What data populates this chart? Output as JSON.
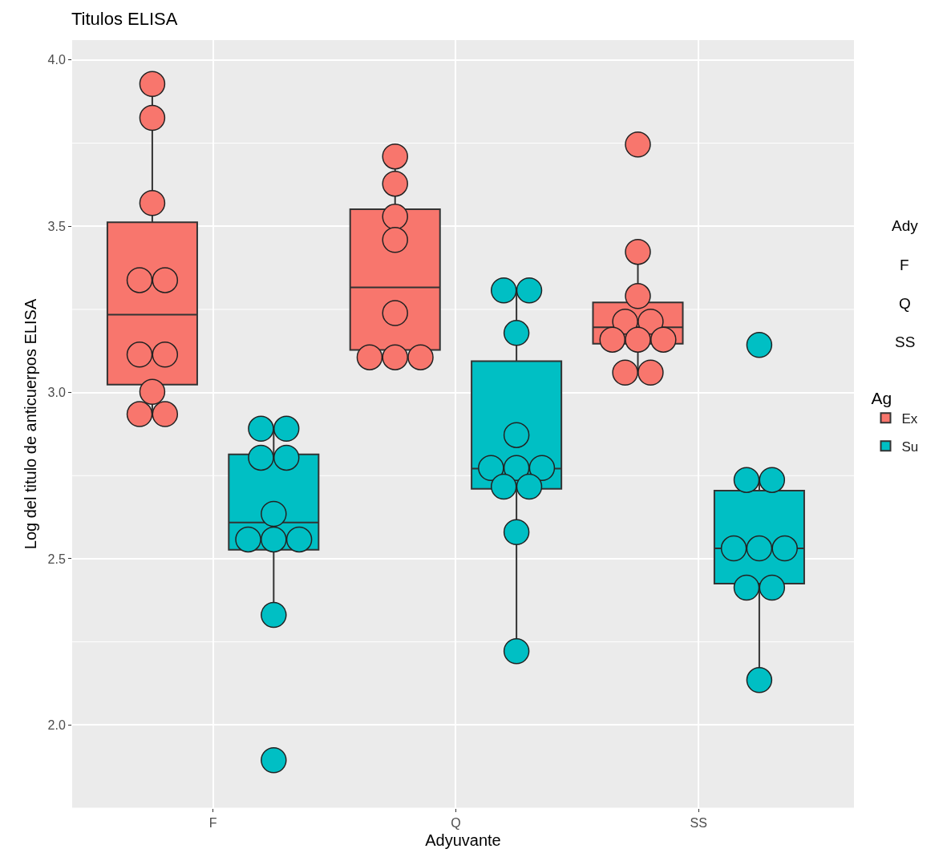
{
  "chart_data": {
    "type": "box",
    "title": "Titulos ELISA",
    "xlabel": "Adyuvante",
    "ylabel": "Log del titulo de anticuerpos ELISA",
    "legend_title": "Ag",
    "categories": [
      "F",
      "Q",
      "SS"
    ],
    "ylim": [
      1.75,
      4.06
    ],
    "yticks": [
      {
        "value": 2,
        "label": "2.0"
      },
      {
        "value": 2.5,
        "label": "2.5"
      },
      {
        "value": 3,
        "label": "3.0"
      },
      {
        "value": 3.5,
        "label": "3.5"
      },
      {
        "value": 4,
        "label": "4.0"
      }
    ],
    "grid": true,
    "legend": "right",
    "marker": "circle",
    "annotations": [
      "Ady",
      "F",
      "Q",
      "SS"
    ],
    "series": [
      {
        "name": "Ex",
        "color": "#f8766d",
        "boxes": [
          {
            "low": 2.935,
            "q1": 3.024,
            "median": 3.234,
            "q3": 3.512,
            "high": 3.928
          },
          {
            "low": 3.106,
            "q1": 3.128,
            "median": 3.316,
            "q3": 3.551,
            "high": 3.71
          },
          {
            "low": 3.06,
            "q1": 3.147,
            "median": 3.196,
            "q3": 3.271,
            "high": 3.423
          }
        ]
      },
      {
        "name": "Su",
        "color": "#00bfc4",
        "boxes": [
          {
            "low": 2.331,
            "q1": 2.527,
            "median": 2.609,
            "q3": 2.814,
            "high": 2.891
          },
          {
            "low": 2.222,
            "q1": 2.71,
            "median": 2.771,
            "q3": 3.094,
            "high": 3.307
          },
          {
            "low": 2.135,
            "q1": 2.425,
            "median": 2.531,
            "q3": 2.705,
            "high": 2.737
          }
        ]
      },
      {
        "type": "scatter",
        "color": "#f8766d",
        "x": [
          "F",
          "F",
          "F",
          "F",
          "F",
          "F",
          "F",
          "F",
          "F",
          "F",
          "Q",
          "Q",
          "Q",
          "Q",
          "Q",
          "Q",
          "Q",
          "Q",
          "SS",
          "SS",
          "SS",
          "SS",
          "SS",
          "SS",
          "SS",
          "SS",
          "SS",
          "SS"
        ],
        "values": [
          3.928,
          3.826,
          3.57,
          3.338,
          3.338,
          3.114,
          3.114,
          3.002,
          2.935,
          2.935,
          3.71,
          3.628,
          3.529,
          3.459,
          3.239,
          3.106,
          3.106,
          3.106,
          3.746,
          3.423,
          3.29,
          3.213,
          3.213,
          3.159,
          3.159,
          3.159,
          3.06,
          3.06
        ]
      },
      {
        "type": "scatter",
        "color": "#00bfc4",
        "x": [
          "F",
          "F",
          "F",
          "F",
          "F",
          "F",
          "F",
          "F",
          "F",
          "F",
          "Q",
          "Q",
          "Q",
          "Q",
          "Q",
          "Q",
          "Q",
          "Q",
          "Q",
          "Q",
          "Q",
          "SS",
          "SS",
          "SS",
          "SS",
          "SS",
          "SS",
          "SS",
          "SS",
          "SS"
        ],
        "values": [
          2.891,
          2.891,
          2.804,
          2.804,
          2.635,
          2.558,
          2.558,
          2.558,
          2.331,
          1.894,
          3.307,
          3.307,
          3.179,
          2.872,
          2.773,
          2.773,
          2.773,
          2.717,
          2.717,
          2.58,
          2.222,
          3.143,
          2.737,
          2.737,
          2.531,
          2.531,
          2.531,
          2.413,
          2.413,
          2.135
        ]
      }
    ]
  }
}
